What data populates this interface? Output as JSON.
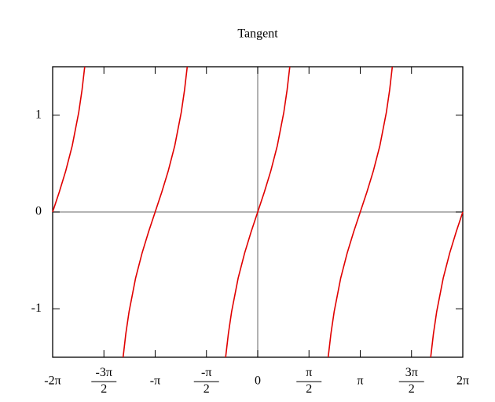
{
  "chart_data": {
    "type": "line",
    "title": "Tangent",
    "x": [
      -6.283,
      -6.083,
      -5.883,
      -5.683,
      -5.483,
      -5.383,
      -5.3,
      null,
      -4.124,
      -4.042,
      -3.942,
      -3.742,
      -3.542,
      -3.342,
      -3.142,
      -2.942,
      -2.742,
      -2.542,
      -2.342,
      -2.242,
      -2.159,
      null,
      -0.983,
      -0.9,
      -0.8,
      -0.6,
      -0.4,
      -0.2,
      0,
      0.2,
      0.4,
      0.6,
      0.8,
      0.9,
      0.983,
      null,
      2.159,
      2.242,
      2.342,
      2.542,
      2.742,
      2.942,
      3.142,
      3.342,
      3.542,
      3.742,
      3.942,
      4.042,
      4.124,
      null,
      5.3,
      5.383,
      5.483,
      5.683,
      5.883,
      6.083,
      6.283
    ],
    "series": [
      {
        "color": "#e00000",
        "values": [
          0,
          0.203,
          0.423,
          0.684,
          1.03,
          1.26,
          1.5,
          null,
          -1.5,
          -1.26,
          -1.03,
          -0.684,
          -0.423,
          -0.203,
          0,
          0.203,
          0.423,
          0.684,
          1.03,
          1.26,
          1.5,
          null,
          -1.5,
          -1.26,
          -1.03,
          -0.684,
          -0.423,
          -0.203,
          0,
          0.203,
          0.423,
          0.684,
          1.03,
          1.26,
          1.5,
          null,
          -1.5,
          -1.26,
          -1.03,
          -0.684,
          -0.423,
          -0.203,
          0,
          0.203,
          0.423,
          0.684,
          1.03,
          1.26,
          1.5,
          null,
          -1.5,
          -1.26,
          -1.03,
          -0.684,
          -0.423,
          -0.203,
          0
        ]
      }
    ],
    "xlim": [
      -6.283,
      6.283
    ],
    "ylim": [
      -1.5,
      1.5
    ],
    "xticks": [
      {
        "value": -6.283,
        "label": "-2π"
      },
      {
        "value": -4.712,
        "label": "-3π/2"
      },
      {
        "value": -3.142,
        "label": "-π"
      },
      {
        "value": -1.571,
        "label": "-π/2"
      },
      0,
      {
        "value": 1.571,
        "label": "π/2"
      },
      {
        "value": 3.142,
        "label": "π"
      },
      {
        "value": 4.712,
        "label": "3π/2"
      },
      {
        "value": 6.283,
        "label": "2π"
      }
    ],
    "yticks": [
      -1,
      0,
      1
    ]
  }
}
